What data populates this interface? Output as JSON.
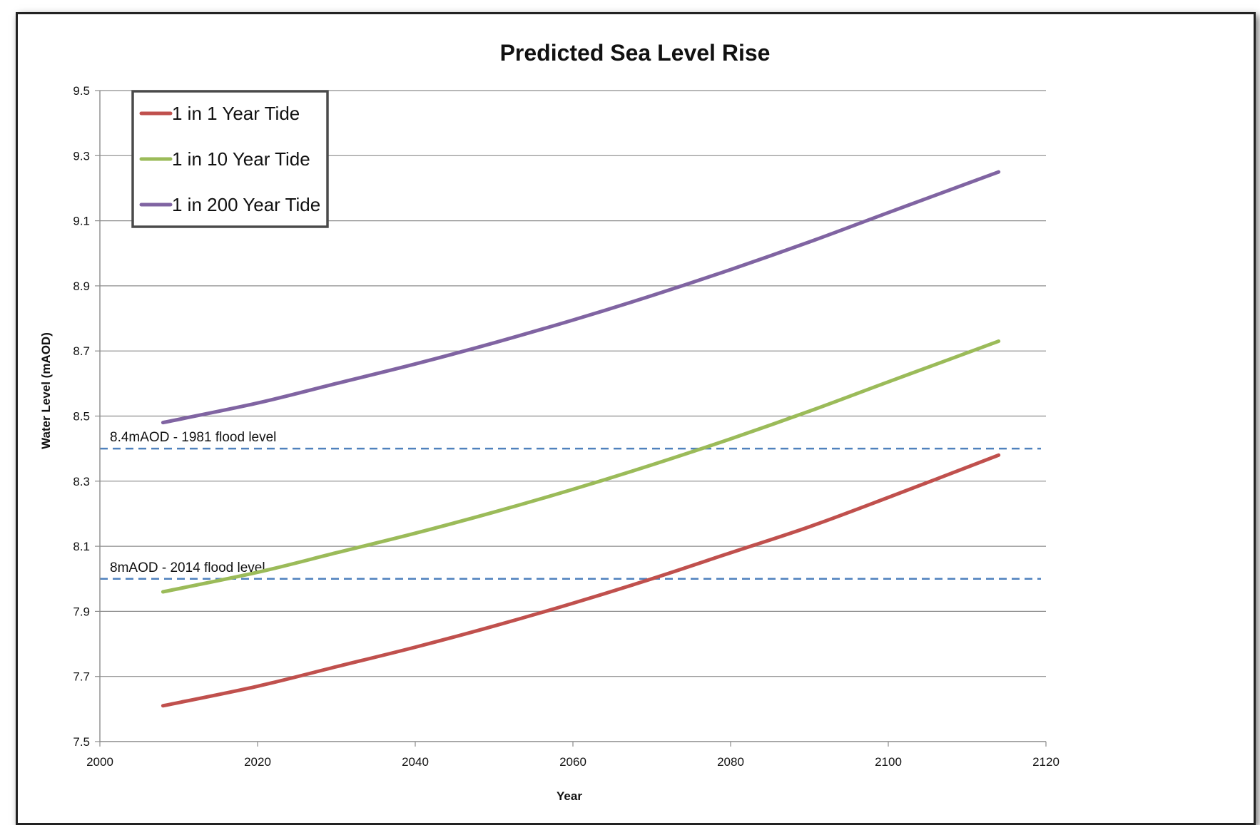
{
  "chart_data": {
    "type": "line",
    "title": "Predicted Sea Level Rise",
    "xlabel": "Year",
    "ylabel": "Water Level (mAOD)",
    "xlim": [
      2000,
      2120
    ],
    "ylim": [
      7.5,
      9.5
    ],
    "xticks": [
      "2000",
      "2020",
      "2040",
      "2060",
      "2080",
      "2100",
      "2120"
    ],
    "yticks": [
      "7.5",
      "7.7",
      "7.9",
      "8.1",
      "8.3",
      "8.5",
      "8.7",
      "8.9",
      "9.1",
      "9.3",
      "9.5"
    ],
    "grid": "horizontal",
    "legend_position": "top-left",
    "series": [
      {
        "name": "1 in 1 Year Tide",
        "color": "#c0504d",
        "x": [
          2008,
          2020,
          2030,
          2040,
          2050,
          2060,
          2070,
          2080,
          2090,
          2100,
          2114
        ],
        "y": [
          7.61,
          7.67,
          7.73,
          7.79,
          7.855,
          7.925,
          8.0,
          8.08,
          8.16,
          8.25,
          8.38
        ]
      },
      {
        "name": "1 in 10 Year Tide",
        "color": "#9bbb59",
        "x": [
          2008,
          2020,
          2030,
          2040,
          2050,
          2060,
          2070,
          2080,
          2090,
          2100,
          2114
        ],
        "y": [
          7.96,
          8.02,
          8.08,
          8.14,
          8.205,
          8.275,
          8.35,
          8.43,
          8.515,
          8.605,
          8.73
        ]
      },
      {
        "name": "1 in 200 Year Tide",
        "color": "#8064a2",
        "x": [
          2008,
          2020,
          2030,
          2040,
          2050,
          2060,
          2070,
          2080,
          2090,
          2100,
          2114
        ],
        "y": [
          8.48,
          8.54,
          8.6,
          8.66,
          8.725,
          8.795,
          8.87,
          8.95,
          9.035,
          9.125,
          9.25
        ]
      }
    ],
    "reference_lines": [
      {
        "label": "8.4mAOD - 1981 flood level",
        "y": 8.4,
        "color": "#4f81bd"
      },
      {
        "label": "8mAOD - 2014 flood level",
        "y": 8.0,
        "color": "#4f81bd"
      }
    ]
  }
}
